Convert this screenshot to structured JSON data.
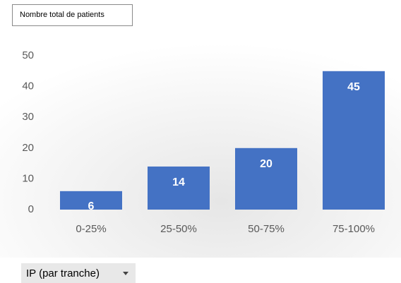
{
  "chart_data": {
    "type": "bar",
    "value_field": "Nombre total de patients",
    "axis_field": "IP (par tranche)",
    "categories": [
      "0-25%",
      "25-50%",
      "50-75%",
      "75-100%"
    ],
    "values": [
      6,
      14,
      20,
      45
    ],
    "color": "#4472c4",
    "ylim": [
      0,
      50
    ],
    "yticks": [
      0,
      10,
      20,
      30,
      40,
      50
    ],
    "grid": false,
    "data_labels": true
  }
}
